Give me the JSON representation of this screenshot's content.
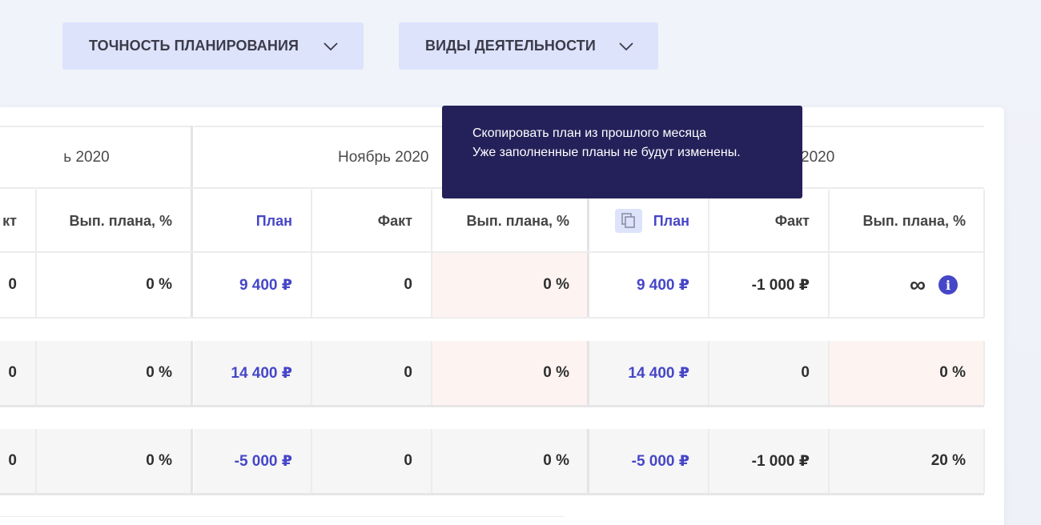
{
  "filters": {
    "accuracy_label": "ТОЧНОСТЬ ПЛАНИРОВАНИЯ",
    "activities_label": "ВИДЫ ДЕЯТЕЛЬНОСТИ"
  },
  "months": {
    "prev": "ь 2020",
    "nov": "Ноябрь 2020",
    "dec": "2020"
  },
  "headers": {
    "fact_partial": "кт",
    "percent": "Вып. плана, %",
    "plan": "План",
    "fact": "Факт"
  },
  "tooltip": {
    "line1": "Скопировать план из прошлого месяца",
    "line2": "Уже заполненные планы не будут изменены."
  },
  "rows": [
    {
      "c0": "0",
      "c1": "0 %",
      "c2": "9 400 ₽",
      "c3": "0",
      "c4": "0 %",
      "c5": "9 400 ₽",
      "c6": "-1 000 ₽",
      "c7": "∞"
    },
    {
      "c0": "0",
      "c1": "0 %",
      "c2": "14 400 ₽",
      "c3": "0",
      "c4": "0 %",
      "c5": "14 400 ₽",
      "c6": "0",
      "c7": "0 %"
    },
    {
      "c0": "0",
      "c1": "0 %",
      "c2": "-5 000 ₽",
      "c3": "0",
      "c4": "0 %",
      "c5": "-5 000 ₽",
      "c6": "-1 000 ₽",
      "c7": "20 %"
    }
  ],
  "icons": {
    "chevron": "chevron-down-icon",
    "copy": "copy-icon",
    "info": "info-icon",
    "info_glyph": "i"
  },
  "colors": {
    "accent": "#4646c8",
    "tooltip_bg": "#24215a",
    "filter_bg": "#dde3fb",
    "negative_bg": "#fdf4f2"
  }
}
